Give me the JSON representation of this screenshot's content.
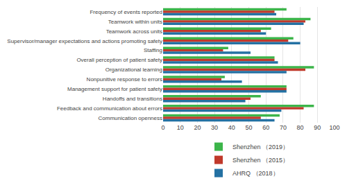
{
  "chart_data": {
    "type": "bar",
    "orientation": "horizontal",
    "categories": [
      "Frequency of events reported",
      "Teamwork within units",
      "Teamwork across units",
      "Supervisor/manager expectations and actions promoting safety",
      "Staffing",
      "Overall perception of patient safety",
      "Organizational learning",
      "Nonpunitive response to errors",
      "Management support for patient safety",
      "Handoffs and transitions",
      "Feedback and communication about errors",
      "Communication openness"
    ],
    "series": [
      {
        "name": "Shenzhen （2019）",
        "color": "#3cb54a",
        "values": [
          72,
          86,
          63,
          76,
          38,
          65,
          88,
          36,
          72,
          57,
          88,
          68
        ]
      },
      {
        "name": "Shenzhen （2015）",
        "color": "#c0392b",
        "values": [
          65,
          83,
          57,
          73,
          35,
          65,
          83,
          34,
          72,
          51,
          82,
          57
        ]
      },
      {
        "name": "AHRQ （2018）",
        "color": "#2471a3",
        "values": [
          66,
          82,
          60,
          80,
          51,
          67,
          72,
          46,
          72,
          48,
          69,
          65
        ]
      }
    ],
    "xlim": [
      0,
      100
    ],
    "xticks": [
      0,
      10,
      20,
      30,
      40,
      50,
      60,
      70,
      80,
      90,
      100
    ],
    "grid": true,
    "legend": "bottom"
  }
}
